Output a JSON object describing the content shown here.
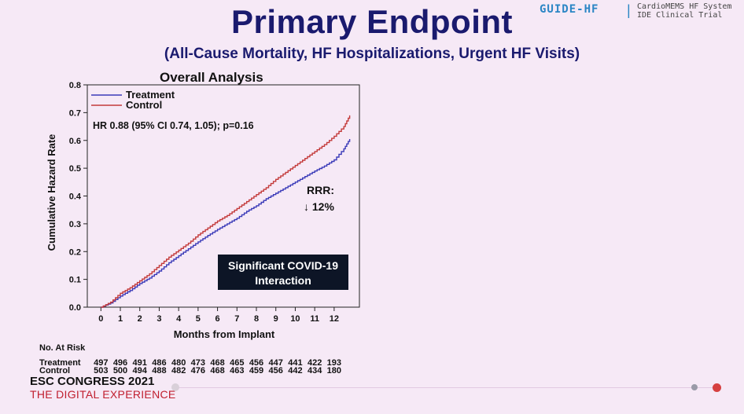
{
  "header": {
    "title": "Primary Endpoint",
    "subtitle": "(All-Cause Mortality, HF Hospitalizations, Urgent HF Visits)",
    "brand": "GUIDE-HF",
    "brand_separator": "|",
    "brand_sub_line1": "CardioMEMS HF System",
    "brand_sub_line2": "IDE Clinical Trial"
  },
  "chart_data": {
    "type": "line",
    "title": "Overall Analysis",
    "xlabel": "Months from Implant",
    "ylabel": "Cumulative Hazard Rate",
    "xlim": [
      -0.7,
      13.3
    ],
    "ylim": [
      0,
      0.8
    ],
    "x_ticks": [
      "0",
      "1",
      "2",
      "3",
      "4",
      "5",
      "6",
      "7",
      "8",
      "9",
      "10",
      "11",
      "12"
    ],
    "y_ticks": [
      "0.0",
      "0.1",
      "0.2",
      "0.3",
      "0.4",
      "0.5",
      "0.6",
      "0.7",
      "0.8"
    ],
    "legend_position": "top-left",
    "series": [
      {
        "name": "Treatment",
        "color": "#3a3ab8",
        "x": [
          0,
          0.5,
          1,
          1.5,
          2,
          2.5,
          3,
          3.5,
          4,
          4.5,
          5,
          5.5,
          6,
          6.5,
          7,
          7.5,
          8,
          8.5,
          9,
          9.5,
          10,
          10.5,
          11,
          11.5,
          12,
          12.5,
          12.8
        ],
        "y": [
          0,
          0.015,
          0.04,
          0.06,
          0.085,
          0.105,
          0.13,
          0.16,
          0.185,
          0.21,
          0.235,
          0.258,
          0.28,
          0.3,
          0.32,
          0.345,
          0.365,
          0.39,
          0.41,
          0.43,
          0.45,
          0.47,
          0.49,
          0.508,
          0.53,
          0.57,
          0.605
        ]
      },
      {
        "name": "Control",
        "color": "#c33a3a",
        "x": [
          0,
          0.5,
          1,
          1.5,
          2,
          2.5,
          3,
          3.5,
          4,
          4.5,
          5,
          5.5,
          6,
          6.5,
          7,
          7.5,
          8,
          8.5,
          9,
          9.5,
          10,
          10.5,
          11,
          11.5,
          12,
          12.5,
          12.8
        ],
        "y": [
          0,
          0.018,
          0.05,
          0.07,
          0.095,
          0.12,
          0.15,
          0.18,
          0.205,
          0.23,
          0.26,
          0.285,
          0.31,
          0.33,
          0.355,
          0.38,
          0.405,
          0.43,
          0.46,
          0.485,
          0.51,
          0.535,
          0.56,
          0.585,
          0.615,
          0.65,
          0.69
        ]
      }
    ],
    "annotations": {
      "hr": "HR 0.88  (95% CI 0.74,  1.05);  p=0.16",
      "rrr_label": "RRR:",
      "rrr_value": "↓ 12%",
      "covid_box_line1": "Significant COVID-19",
      "covid_box_line2": "Interaction"
    }
  },
  "at_risk": {
    "title": "No. At Risk",
    "rows": [
      {
        "label": "Treatment",
        "values": [
          "497",
          "496",
          "491",
          "486",
          "480",
          "473",
          "468",
          "465",
          "456",
          "447",
          "441",
          "422",
          "193"
        ]
      },
      {
        "label": "Control",
        "values": [
          "503",
          "500",
          "494",
          "488",
          "482",
          "476",
          "468",
          "463",
          "459",
          "456",
          "442",
          "434",
          "180"
        ]
      }
    ]
  },
  "footer": {
    "line1": "ESC CONGRESS 2021",
    "line2": "THE DIGITAL EXPERIENCE"
  }
}
